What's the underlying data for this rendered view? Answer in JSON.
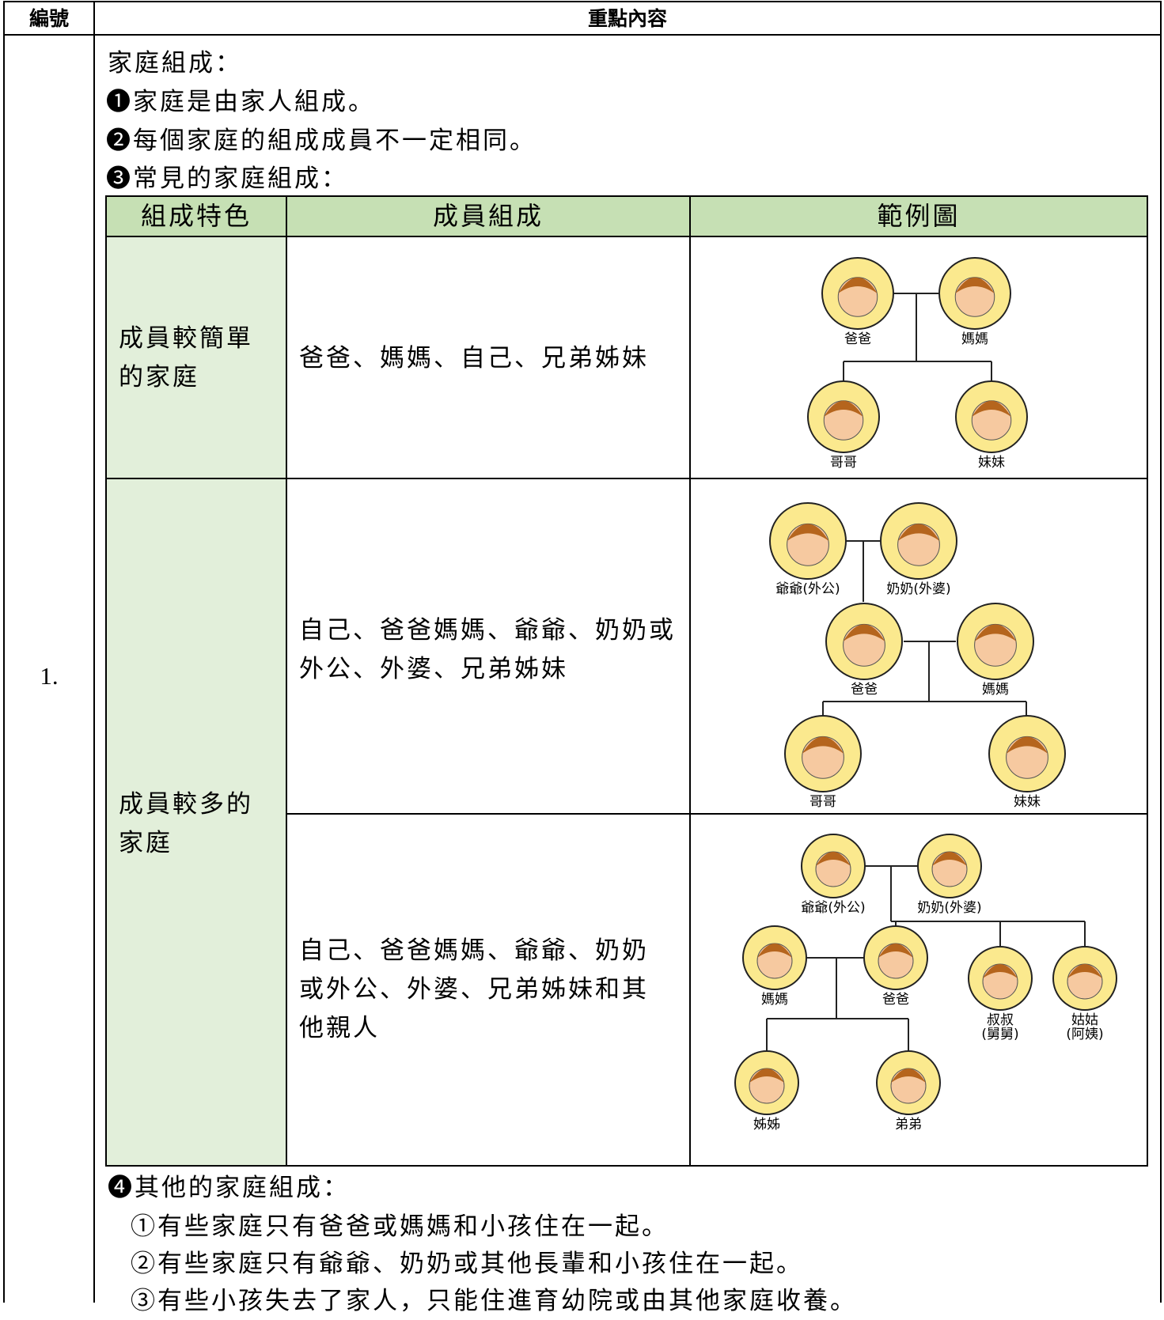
{
  "header": {
    "number": "編號",
    "content": "重點內容"
  },
  "row": {
    "number": "1.",
    "title": "家庭組成：",
    "points": [
      "❶家庭是由家人組成。",
      "❷每個家庭的組成成員不一定相同。",
      "❸常見的家庭組成："
    ],
    "table": {
      "headers": [
        "組成特色",
        "成員組成",
        "範例圖"
      ],
      "simple": {
        "feature": "成員較簡單的家庭",
        "members": "爸爸、媽媽、自己、兄弟姊妹"
      },
      "large": {
        "feature": "成員較多的家庭",
        "members": [
          "自己、爸爸媽媽、爺爺、奶奶或外公、外婆、兄弟姊妹",
          "自己、爸爸媽媽、爺爺、奶奶或外公、外婆、兄弟姊妹和其他親人"
        ]
      },
      "trees": [
        [
          {
            "label": "爸爸"
          },
          {
            "label": "媽媽"
          },
          {
            "label": "哥哥"
          },
          {
            "label": "妹妹"
          }
        ],
        [
          {
            "label": "爺爺(外公)"
          },
          {
            "label": "奶奶(外婆)"
          },
          {
            "label": "爸爸"
          },
          {
            "label": "媽媽"
          },
          {
            "label": "哥哥"
          },
          {
            "label": "妹妹"
          }
        ],
        [
          {
            "label": "爺爺(外公)"
          },
          {
            "label": "奶奶(外婆)"
          },
          {
            "label": "媽媽"
          },
          {
            "label": "爸爸"
          },
          {
            "label": "叔叔",
            "sub": "(舅舅)"
          },
          {
            "label": "姑姑",
            "sub": "(阿姨)"
          },
          {
            "label": "姊姊"
          },
          {
            "label": "弟弟"
          }
        ]
      ]
    },
    "other": {
      "title": "❹其他的家庭組成：",
      "items": [
        "①有些家庭只有爸爸或媽媽和小孩住在一起。",
        "②有些家庭只有爺爺、奶奶或其他長輩和小孩住在一起。",
        "③有些小孩失去了家人，只能住進育幼院或由其他家庭收養。"
      ]
    }
  }
}
